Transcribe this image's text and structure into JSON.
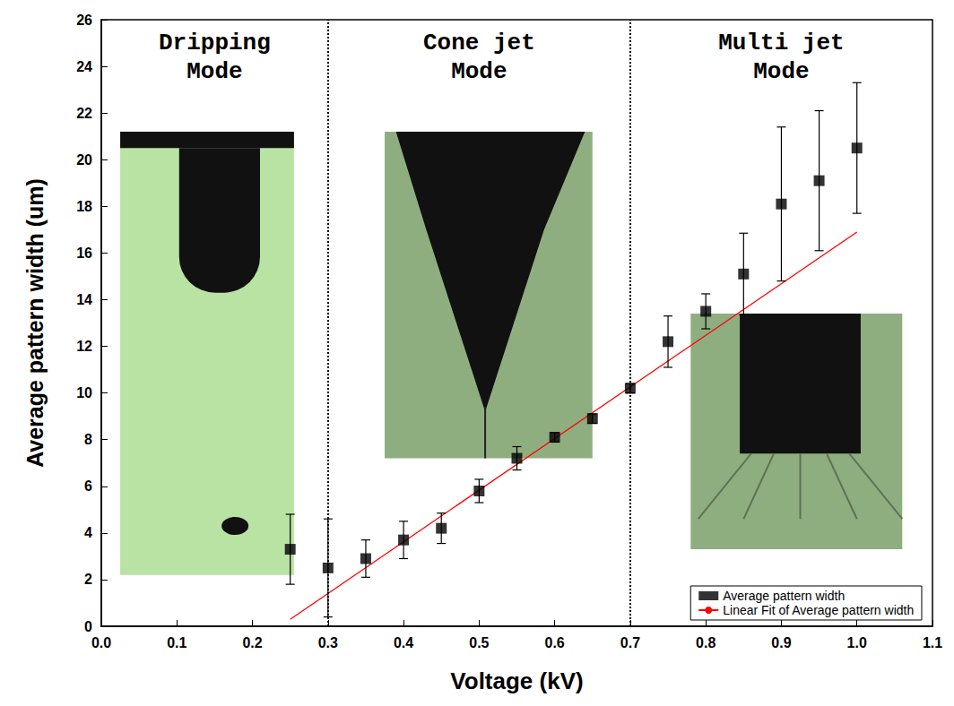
{
  "chart_data": {
    "type": "scatter",
    "x_label": "Voltage (kV)",
    "y_label": "Average pattern width (um)",
    "xlim": [
      0,
      1.1
    ],
    "xticks": [
      {
        "value": 0,
        "label": "0.0"
      },
      0.1,
      0.2,
      0.3,
      0.4,
      0.5,
      0.6,
      0.7,
      0.8,
      0.9,
      {
        "value": 1,
        "label": "1.0"
      },
      1.1
    ],
    "ylim": [
      0,
      26
    ],
    "yticks": [
      0,
      2,
      4,
      6,
      8,
      10,
      12,
      14,
      16,
      18,
      20,
      22,
      24,
      26
    ],
    "grid": false,
    "legend": "lower right",
    "series": [
      {
        "name": "Average pattern width",
        "type": "scatter",
        "marker": "square",
        "color": "#000000",
        "x": [
          0.25,
          0.3,
          0.35,
          0.4,
          0.45,
          0.5,
          0.55,
          0.6,
          0.65,
          0.7,
          0.75,
          0.8,
          0.85,
          0.9,
          0.95,
          1.0
        ],
        "values": [
          3.3,
          2.5,
          2.9,
          3.7,
          4.2,
          5.8,
          7.2,
          8.1,
          8.9,
          10.2,
          12.2,
          13.5,
          15.1,
          18.1,
          19.1,
          20.5
        ],
        "errors": [
          1.5,
          2.1,
          0.8,
          0.8,
          0.65,
          0.5,
          0.5,
          0.2,
          0.2,
          0.2,
          1.1,
          0.75,
          1.75,
          3.3,
          3.0,
          2.8
        ]
      },
      {
        "name": "Linear Fit of Average pattern width",
        "type": "line",
        "color": "#ff0000",
        "x": [
          0.25,
          1.0
        ],
        "values": [
          0.3,
          16.9
        ]
      }
    ],
    "boundaries": [
      0.3,
      0.7
    ],
    "regions": [
      {
        "label": "Dripping Mode",
        "range": [
          0,
          0.3
        ]
      },
      {
        "label": "Cone jet Mode",
        "range": [
          0.3,
          0.7
        ]
      },
      {
        "label": "Multi jet Mode",
        "range": [
          0.7,
          1.1
        ]
      }
    ]
  }
}
